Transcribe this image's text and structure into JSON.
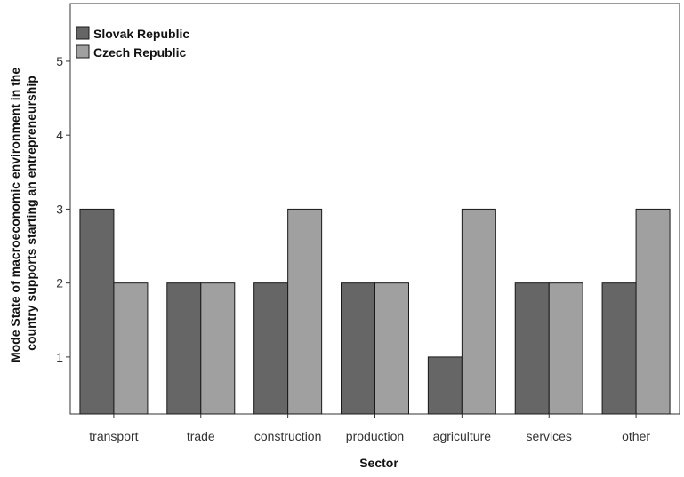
{
  "chart_data": {
    "type": "bar",
    "title": "",
    "xlabel": "Sector",
    "ylabel_lines": [
      "Mode State of macroeconomic environment in the",
      "country supports starting an entrepreneurship"
    ],
    "categories": [
      "transport",
      "trade",
      "construction",
      "production",
      "agriculture",
      "services",
      "other"
    ],
    "series": [
      {
        "name": "Slovak Republic",
        "values": [
          3,
          2,
          2,
          2,
          1,
          2,
          2
        ],
        "color": "#666666"
      },
      {
        "name": "Czech Republic",
        "values": [
          2,
          2,
          3,
          2,
          3,
          2,
          3
        ],
        "color": "#a0a0a0"
      }
    ],
    "yticks": [
      1,
      2,
      3,
      4,
      5
    ],
    "ylim": [
      0.23,
      5.78
    ],
    "grid": false,
    "legend_position": "top-left"
  }
}
